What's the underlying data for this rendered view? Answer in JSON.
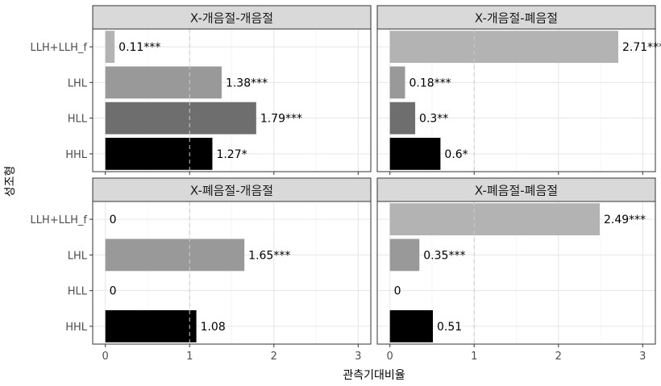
{
  "chart_data": {
    "type": "bar",
    "orientation": "horizontal",
    "facets": [
      "X-개음절-개음절",
      "X-개음절-폐음절",
      "X-폐음절-개음절",
      "X-폐음절-폐음절"
    ],
    "categories": [
      "LLH+LLH_f",
      "LHL",
      "HLL",
      "HHL"
    ],
    "values": [
      [
        0.11,
        1.38,
        1.79,
        1.27
      ],
      [
        2.71,
        0.18,
        0.3,
        0.6
      ],
      [
        0,
        1.65,
        0,
        1.08
      ],
      [
        2.49,
        0.35,
        0,
        0.51
      ]
    ],
    "labels": [
      [
        "0.11***",
        "1.38***",
        "1.79***",
        "1.27*"
      ],
      [
        "2.71***",
        "0.18***",
        "0.3**",
        "0.6*"
      ],
      [
        "0",
        "1.65***",
        "0",
        "1.08"
      ],
      [
        "2.49***",
        "0.35***",
        "0",
        "0.51"
      ]
    ],
    "xlabel": "관측기대비율",
    "ylabel": "성조형",
    "xlim": [
      -0.15,
      3.15
    ],
    "xticks": [
      0,
      1,
      2,
      3
    ],
    "reference_line": 1,
    "grid": true,
    "colors": {
      "LLH+LLH_f": "#b3b3b3",
      "LHL": "#999999",
      "HLL": "#6e6e6e",
      "HHL": "#000000"
    }
  }
}
